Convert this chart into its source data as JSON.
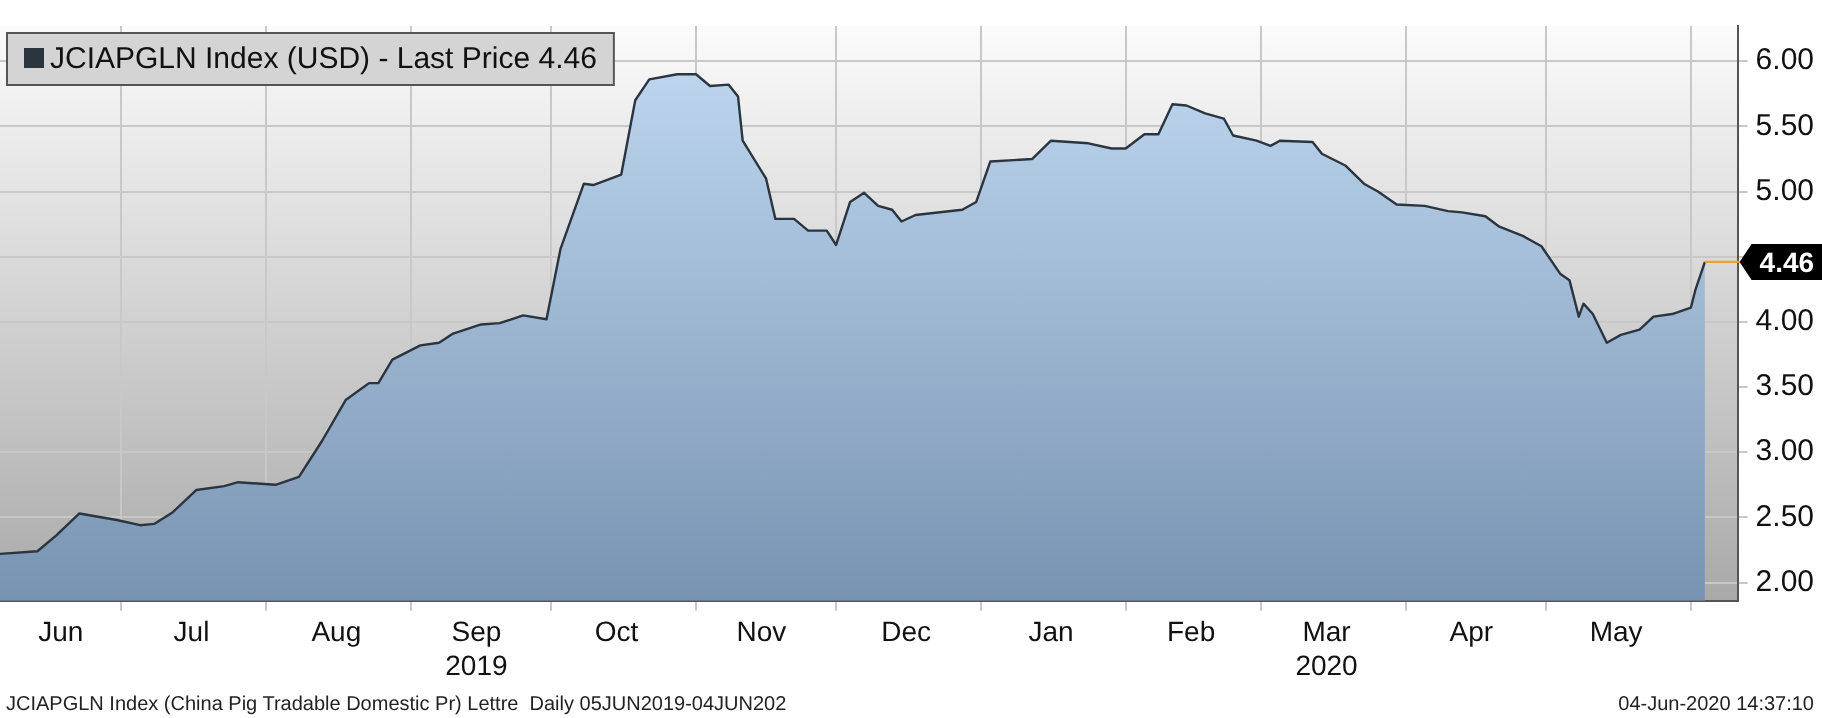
{
  "chart_data": {
    "type": "area",
    "legend": "top left",
    "grid": true,
    "line_style": "solid",
    "x": [
      "2019-06-05",
      "2019-06-13",
      "2019-06-17",
      "2019-06-22",
      "2019-06-30",
      "2019-07-05",
      "2019-07-08",
      "2019-07-12",
      "2019-07-17",
      "2019-07-23",
      "2019-07-26",
      "2019-08-03",
      "2019-08-08",
      "2019-08-13",
      "2019-08-18",
      "2019-08-23",
      "2019-08-25",
      "2019-08-28",
      "2019-09-03",
      "2019-09-07",
      "2019-09-10",
      "2019-09-16",
      "2019-09-20",
      "2019-09-25",
      "2019-09-30",
      "2019-10-03",
      "2019-10-08",
      "2019-10-10",
      "2019-10-16",
      "2019-10-19",
      "2019-10-22",
      "2019-10-28",
      "2019-11-01",
      "2019-11-04",
      "2019-11-08",
      "2019-11-10",
      "2019-11-11",
      "2019-11-16",
      "2019-11-18",
      "2019-11-22",
      "2019-11-25",
      "2019-11-29",
      "2019-12-01",
      "2019-12-04",
      "2019-12-07",
      "2019-12-10",
      "2019-12-13",
      "2019-12-15",
      "2019-12-18",
      "2019-12-28",
      "2019-12-31",
      "2020-01-03",
      "2020-01-12",
      "2020-01-16",
      "2020-01-24",
      "2020-01-29",
      "2020-02-01",
      "2020-02-05",
      "2020-02-08",
      "2020-02-11",
      "2020-02-14",
      "2020-02-18",
      "2020-02-22",
      "2020-02-24",
      "2020-02-29",
      "2020-03-03",
      "2020-03-05",
      "2020-03-12",
      "2020-03-14",
      "2020-03-19",
      "2020-03-23",
      "2020-03-26",
      "2020-03-30",
      "2020-04-05",
      "2020-04-10",
      "2020-04-13",
      "2020-04-18",
      "2020-04-21",
      "2020-04-26",
      "2020-04-30",
      "2020-05-04",
      "2020-05-06",
      "2020-05-08",
      "2020-05-09",
      "2020-05-11",
      "2020-05-14",
      "2020-05-17",
      "2020-05-21",
      "2020-05-24",
      "2020-05-28",
      "2020-06-01",
      "2020-06-02",
      "2020-06-04"
    ],
    "series": [
      {
        "name": "JCIAPGLN Index (USD) - Last Price 4.46",
        "color": "#2b3540",
        "values": [
          2.22,
          2.24,
          2.36,
          2.53,
          2.48,
          2.44,
          2.45,
          2.54,
          2.71,
          2.74,
          2.77,
          2.75,
          2.81,
          3.09,
          3.4,
          3.53,
          3.53,
          3.71,
          3.82,
          3.84,
          3.91,
          3.98,
          3.99,
          4.05,
          4.02,
          4.56,
          5.06,
          5.05,
          5.13,
          5.7,
          5.86,
          5.9,
          5.9,
          5.81,
          5.82,
          5.73,
          5.39,
          5.1,
          4.79,
          4.79,
          4.7,
          4.7,
          4.59,
          4.92,
          4.99,
          4.89,
          4.86,
          4.77,
          4.82,
          4.86,
          4.92,
          5.23,
          5.25,
          5.39,
          5.37,
          5.33,
          5.33,
          5.44,
          5.44,
          5.67,
          5.66,
          5.6,
          5.56,
          5.43,
          5.39,
          5.35,
          5.39,
          5.38,
          5.29,
          5.2,
          5.06,
          5,
          4.9,
          4.89,
          4.85,
          4.84,
          4.81,
          4.73,
          4.66,
          4.58,
          4.37,
          4.32,
          4.04,
          4.14,
          4.06,
          3.84,
          3.9,
          3.94,
          4.04,
          4.06,
          4.11,
          4.25,
          4.46
        ]
      }
    ],
    "xlim": [
      "2019-06-05",
      "2020-06-11"
    ],
    "xticks": [
      {
        "value": "2019-06-18",
        "label": "Jun"
      },
      {
        "value": "2019-07-16",
        "label": "Jul"
      },
      {
        "value": "2019-08-16",
        "label": "Aug"
      },
      {
        "value": "2019-09-15",
        "label": "Sep\n2019"
      },
      {
        "value": "2019-10-15",
        "label": "Oct"
      },
      {
        "value": "2019-11-15",
        "label": "Nov"
      },
      {
        "value": "2019-12-16",
        "label": "Dec"
      },
      {
        "value": "2020-01-16",
        "label": "Jan"
      },
      {
        "value": "2020-02-15",
        "label": "Feb"
      },
      {
        "value": "2020-03-15",
        "label": "Mar\n2020"
      },
      {
        "value": "2020-04-15",
        "label": "Apr"
      },
      {
        "value": "2020-05-16",
        "label": "May"
      },
      {
        "value": "2019-07-01",
        "label": null
      },
      {
        "value": "2019-08-01",
        "label": null
      },
      {
        "value": "2019-09-01",
        "label": null
      },
      {
        "value": "2019-10-01",
        "label": null
      },
      {
        "value": "2019-11-01",
        "label": null
      },
      {
        "value": "2019-12-01",
        "label": null
      },
      {
        "value": "2020-01-01",
        "label": null
      },
      {
        "value": "2020-02-01",
        "label": null
      },
      {
        "value": "2020-03-01",
        "label": null
      },
      {
        "value": "2020-04-01",
        "label": null
      },
      {
        "value": "2020-05-01",
        "label": null
      },
      {
        "value": "2020-06-01",
        "label": null
      }
    ],
    "ylim": [
      1.86,
      6.27
    ],
    "yticks": [
      {
        "value": 2,
        "label": "2.00"
      },
      {
        "value": 2.5,
        "label": "2.50"
      },
      {
        "value": 3,
        "label": "3.00"
      },
      {
        "value": 3.5,
        "label": "3.50"
      },
      {
        "value": 4,
        "label": "4.00"
      },
      {
        "value": 4.5,
        "label": null
      },
      {
        "value": 5,
        "label": "5.00"
      },
      {
        "value": 5.5,
        "label": "5.50"
      },
      {
        "value": 6,
        "label": "6.00"
      }
    ],
    "annotations": [
      {
        "text": "4.46",
        "x": "2020-06-04",
        "y": 4.46
      },
      "JCIAPGLN Index (China Pig Tradable Domestic Pr) Lettre  Daily 05JUN2019-04JUN202",
      "04-Jun-2020 14:37:10"
    ]
  }
}
